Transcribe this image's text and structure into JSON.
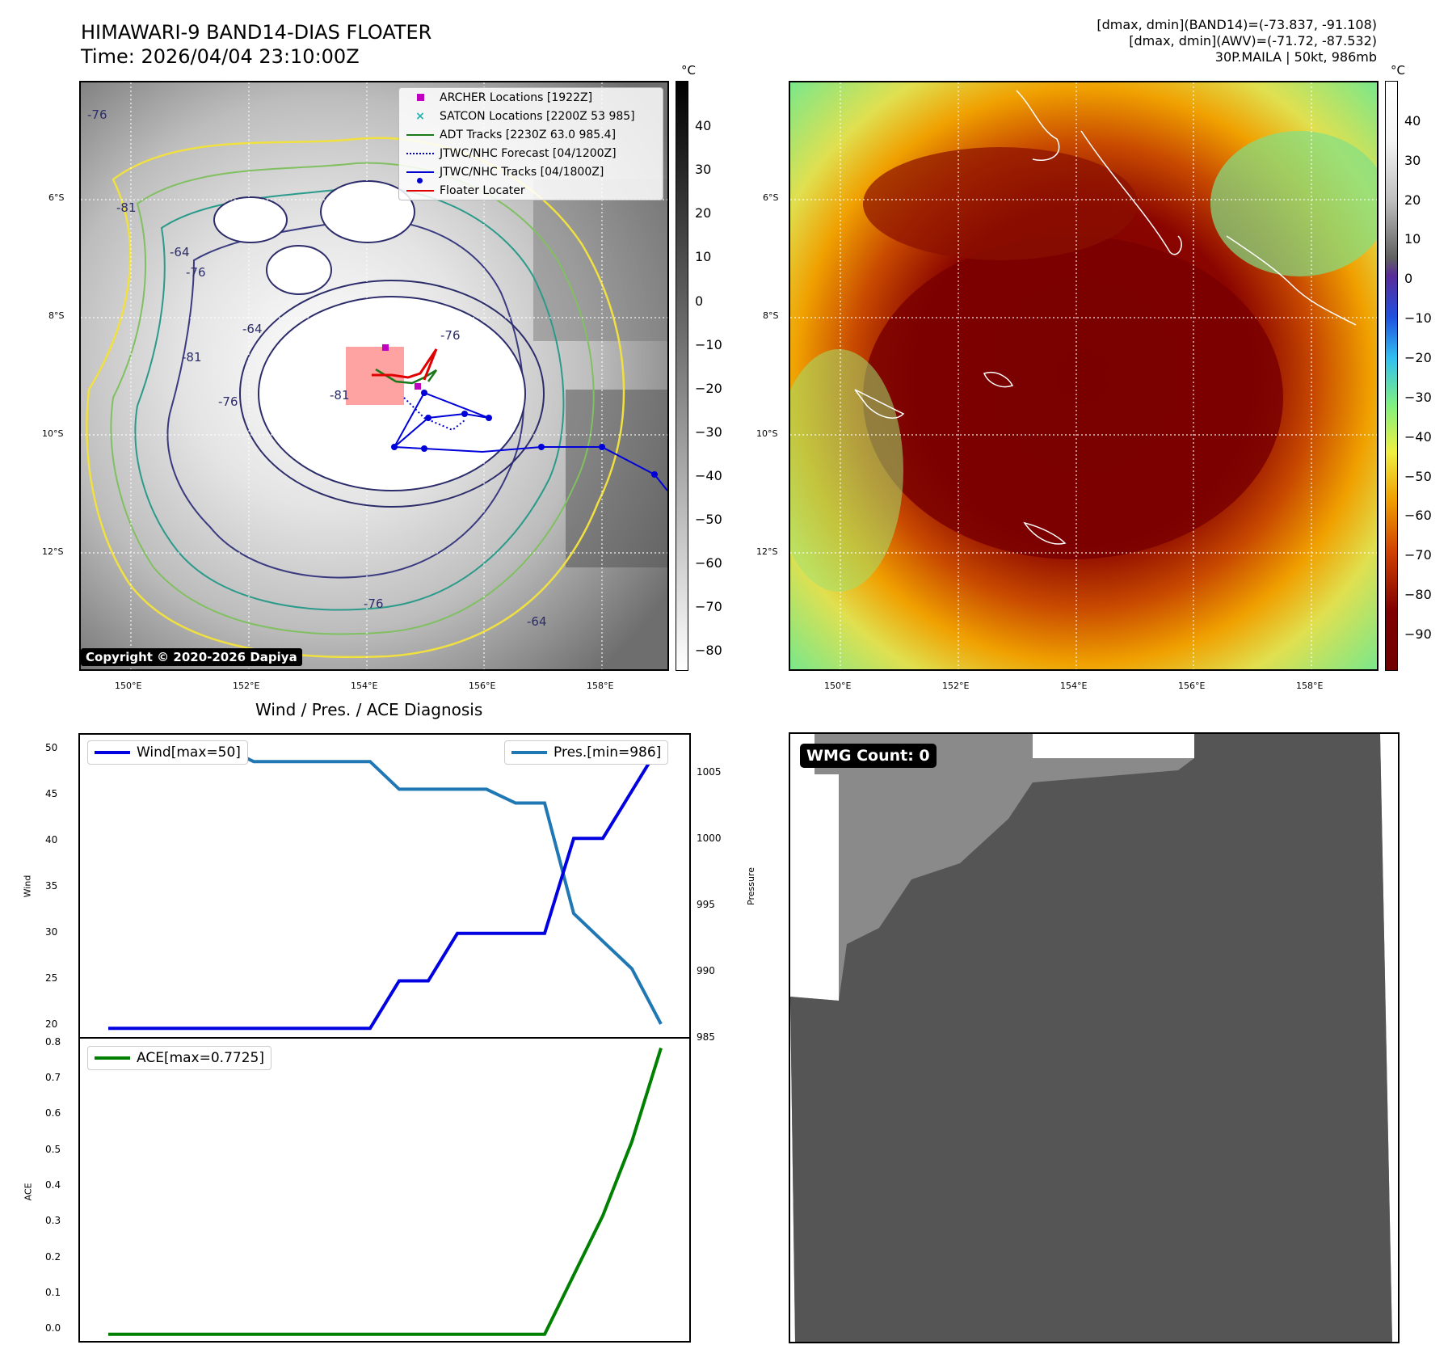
{
  "header": {
    "title_line1": "HIMAWARI-9 BAND14-DIAS FLOATER",
    "title_line2": "Time: 2026/04/04 23:10:00Z",
    "right_line1": "[dmax, dmin](BAND14)=(-73.837, -91.108)",
    "right_line2": "[dmax, dmin](AWV)=(-71.72, -87.532)",
    "right_line3": "30P.MAILA | 50kt, 986mb"
  },
  "map_axes": {
    "lat_labels": [
      "6°S",
      "8°S",
      "10°S",
      "12°S"
    ],
    "lon_labels": [
      "150°E",
      "152°E",
      "154°E",
      "156°E",
      "158°E"
    ],
    "unit": "°C"
  },
  "left_colorbar": {
    "ticks": [
      "40",
      "30",
      "20",
      "10",
      "0",
      "−10",
      "−20",
      "−30",
      "−40",
      "−50",
      "−60",
      "−70",
      "−80"
    ]
  },
  "right_colorbar": {
    "ticks": [
      "40",
      "30",
      "20",
      "10",
      "0",
      "−10",
      "−20",
      "−30",
      "−40",
      "−50",
      "−60",
      "−70",
      "−80",
      "−90"
    ]
  },
  "legend": {
    "items": [
      {
        "label": "ARCHER Locations [1922Z]",
        "color": "#c000c0",
        "symbol": "square"
      },
      {
        "label": "SATCON Locations [2200Z 53 985]",
        "color": "#20b0b0",
        "symbol": "x"
      },
      {
        "label": "ADT Tracks [2230Z 63.0 985.4]",
        "color": "#1a7a1a",
        "symbol": "line"
      },
      {
        "label": "JTWC/NHC Forecast [04/1200Z]",
        "color": "#0000d0",
        "symbol": "dotted"
      },
      {
        "label": "JTWC/NHC Tracks [04/1800Z]",
        "color": "#0000d0",
        "symbol": "dotline"
      },
      {
        "label": "Floater Locater",
        "color": "#e00000",
        "symbol": "line"
      }
    ]
  },
  "contour_labels": [
    "-76",
    "-81",
    "-64",
    "-76",
    "-81",
    "-76",
    "-64",
    "-76",
    "-81",
    "-76",
    "-64"
  ],
  "copyright": "Copyright © 2020-2026 Dapiya",
  "diag": {
    "title": "Wind / Pres. / ACE Diagnosis",
    "wind_axis_label": "Wind",
    "pressure_axis_label": "Pressure",
    "ace_axis_label": "ACE",
    "wind_legend": "Wind[max=50]",
    "pres_legend": "Pres.[min=986]",
    "ace_legend": "ACE[max=0.7725]",
    "wind_ticks": [
      "50",
      "45",
      "40",
      "35",
      "30",
      "25",
      "20"
    ],
    "pres_ticks": [
      "1005",
      "1000",
      "995",
      "990",
      "985"
    ],
    "ace_ticks": [
      "0.8",
      "0.7",
      "0.6",
      "0.5",
      "0.4",
      "0.3",
      "0.2",
      "0.1",
      "0.0"
    ]
  },
  "wmg": {
    "label": "WMG Count: 0"
  },
  "chart_data": [
    {
      "type": "line",
      "title": "Wind / Pres. / ACE Diagnosis",
      "ylabel": "Wind",
      "ylim": [
        19,
        51
      ],
      "series": [
        {
          "name": "Wind[max=50]",
          "color": "#0000e0",
          "values": [
            20,
            20,
            20,
            20,
            20,
            20,
            20,
            20,
            20,
            20,
            25,
            25,
            30,
            30,
            30,
            30,
            40,
            40,
            45,
            50
          ]
        }
      ]
    },
    {
      "type": "line",
      "ylabel": "Pressure",
      "ylim": [
        985,
        1007
      ],
      "series": [
        {
          "name": "Pres.[min=986]",
          "color": "#1f77b4",
          "values": [
            1006,
            1006,
            1006,
            1006,
            1006,
            1005,
            1005,
            1005,
            1005,
            1005,
            1003,
            1003,
            1003,
            1003,
            1002,
            1002,
            994,
            992,
            990,
            986
          ]
        }
      ]
    },
    {
      "type": "line",
      "ylabel": "ACE",
      "ylim": [
        -0.02,
        0.8
      ],
      "series": [
        {
          "name": "ACE[max=0.7725]",
          "color": "#008000",
          "values": [
            0,
            0,
            0,
            0,
            0,
            0,
            0,
            0,
            0,
            0,
            0,
            0,
            0,
            0,
            0,
            0,
            0.16,
            0.32,
            0.52,
            0.7725
          ]
        }
      ]
    }
  ]
}
